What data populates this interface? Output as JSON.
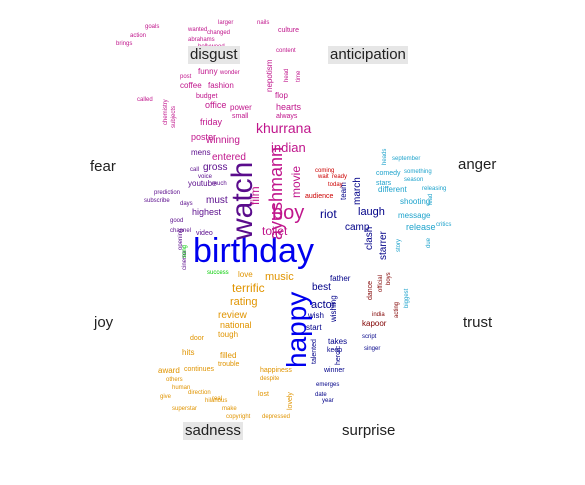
{
  "chart_data": {
    "type": "wordcloud",
    "title": "",
    "emotion_labels": [
      "disgust",
      "anticipation",
      "fear",
      "anger",
      "joy",
      "trust",
      "sadness",
      "surprise"
    ],
    "colors": {
      "disgust": "#c0168c",
      "fear": "#5a0c8c",
      "anger": "#1ea3cc",
      "joy": "#0000ee",
      "trust": "#800000",
      "sadness": "#e09400",
      "surprise": "#000088",
      "anticipation": "#cc0000",
      "green": "#00cc00"
    },
    "words": [
      {
        "text": "birthday",
        "emotion": "joy",
        "size": 34
      },
      {
        "text": "watch",
        "emotion": "fear",
        "size": 30
      },
      {
        "text": "happy",
        "emotion": "joy",
        "size": 28
      },
      {
        "text": "boy",
        "emotion": "disgust",
        "size": 20
      },
      {
        "text": "ayushmann",
        "emotion": "disgust",
        "size": 18
      },
      {
        "text": "khurrana",
        "emotion": "disgust",
        "size": 14
      },
      {
        "text": "indian",
        "emotion": "disgust",
        "size": 13
      },
      {
        "text": "movie",
        "emotion": "disgust",
        "size": 12
      },
      {
        "text": "toilet",
        "emotion": "disgust",
        "size": 12
      },
      {
        "text": "film",
        "emotion": "disgust",
        "size": 12
      },
      {
        "text": "entered",
        "emotion": "disgust",
        "size": 10
      },
      {
        "text": "winning",
        "emotion": "disgust",
        "size": 10
      },
      {
        "text": "poster",
        "emotion": "disgust",
        "size": 9
      },
      {
        "text": "hearts",
        "emotion": "disgust",
        "size": 9
      },
      {
        "text": "office",
        "emotion": "disgust",
        "size": 9
      },
      {
        "text": "friday",
        "emotion": "disgust",
        "size": 9
      },
      {
        "text": "coffee",
        "emotion": "disgust",
        "size": 8
      },
      {
        "text": "fashion",
        "emotion": "disgust",
        "size": 8
      },
      {
        "text": "nepotism",
        "emotion": "disgust",
        "size": 8
      },
      {
        "text": "flop",
        "emotion": "disgust",
        "size": 8
      },
      {
        "text": "power",
        "emotion": "disgust",
        "size": 8
      },
      {
        "text": "funny",
        "emotion": "disgust",
        "size": 8
      },
      {
        "text": "budget",
        "emotion": "disgust",
        "size": 7
      },
      {
        "text": "small",
        "emotion": "disgust",
        "size": 7
      },
      {
        "text": "always",
        "emotion": "disgust",
        "size": 7
      },
      {
        "text": "culture",
        "emotion": "disgust",
        "size": 7
      },
      {
        "text": "content",
        "emotion": "disgust",
        "size": 6
      },
      {
        "text": "larger",
        "emotion": "disgust",
        "size": 6
      },
      {
        "text": "nails",
        "emotion": "disgust",
        "size": 6
      },
      {
        "text": "bollywood",
        "emotion": "disgust",
        "size": 6
      },
      {
        "text": "changed",
        "emotion": "disgust",
        "size": 6
      },
      {
        "text": "wanted",
        "emotion": "disgust",
        "size": 6
      },
      {
        "text": "abrahams",
        "emotion": "disgust",
        "size": 6
      },
      {
        "text": "wonder",
        "emotion": "disgust",
        "size": 6
      },
      {
        "text": "head",
        "emotion": "disgust",
        "size": 6
      },
      {
        "text": "time",
        "emotion": "disgust",
        "size": 6
      },
      {
        "text": "post",
        "emotion": "disgust",
        "size": 6
      },
      {
        "text": "goals",
        "emotion": "disgust",
        "size": 6
      },
      {
        "text": "action",
        "emotion": "disgust",
        "size": 6
      },
      {
        "text": "brings",
        "emotion": "disgust",
        "size": 6
      },
      {
        "text": "called",
        "emotion": "disgust",
        "size": 6
      },
      {
        "text": "subjects",
        "emotion": "disgust",
        "size": 6
      },
      {
        "text": "chemistry",
        "emotion": "disgust",
        "size": 6
      },
      {
        "text": "mens",
        "emotion": "fear",
        "size": 8
      },
      {
        "text": "gross",
        "emotion": "fear",
        "size": 10
      },
      {
        "text": "must",
        "emotion": "fear",
        "size": 10
      },
      {
        "text": "highest",
        "emotion": "fear",
        "size": 9
      },
      {
        "text": "youtube",
        "emotion": "fear",
        "size": 8
      },
      {
        "text": "video",
        "emotion": "fear",
        "size": 7
      },
      {
        "text": "channel",
        "emotion": "fear",
        "size": 6
      },
      {
        "text": "prediction",
        "emotion": "fear",
        "size": 6
      },
      {
        "text": "subscribe",
        "emotion": "fear",
        "size": 6
      },
      {
        "text": "voice",
        "emotion": "fear",
        "size": 6
      },
      {
        "text": "call",
        "emotion": "fear",
        "size": 6
      },
      {
        "text": "much",
        "emotion": "fear",
        "size": 6
      },
      {
        "text": "good",
        "emotion": "fear",
        "size": 6
      },
      {
        "text": "opening",
        "emotion": "fear",
        "size": 6
      },
      {
        "text": "days",
        "emotion": "fear",
        "size": 6
      },
      {
        "text": "cinema",
        "emotion": "fear",
        "size": 6
      },
      {
        "text": "riot",
        "emotion": "surprise",
        "size": 12
      },
      {
        "text": "laugh",
        "emotion": "surprise",
        "size": 11
      },
      {
        "text": "camp",
        "emotion": "surprise",
        "size": 10
      },
      {
        "text": "march",
        "emotion": "surprise",
        "size": 10
      },
      {
        "text": "clash",
        "emotion": "surprise",
        "size": 10
      },
      {
        "text": "starrer",
        "emotion": "surprise",
        "size": 10
      },
      {
        "text": "team",
        "emotion": "surprise",
        "size": 8
      },
      {
        "text": "audience",
        "emotion": "anticipation",
        "size": 7
      },
      {
        "text": "coming",
        "emotion": "anticipation",
        "size": 6
      },
      {
        "text": "wait",
        "emotion": "anticipation",
        "size": 6
      },
      {
        "text": "ready",
        "emotion": "anticipation",
        "size": 6
      },
      {
        "text": "today",
        "emotion": "anticipation",
        "size": 6
      },
      {
        "text": "release",
        "emotion": "anger",
        "size": 9
      },
      {
        "text": "different",
        "emotion": "anger",
        "size": 8
      },
      {
        "text": "shooting",
        "emotion": "anger",
        "size": 8
      },
      {
        "text": "message",
        "emotion": "anger",
        "size": 8
      },
      {
        "text": "comedy",
        "emotion": "anger",
        "size": 7
      },
      {
        "text": "something",
        "emotion": "anger",
        "size": 6
      },
      {
        "text": "stars",
        "emotion": "anger",
        "size": 7
      },
      {
        "text": "season",
        "emotion": "anger",
        "size": 6
      },
      {
        "text": "releasing",
        "emotion": "anger",
        "size": 6
      },
      {
        "text": "september",
        "emotion": "anger",
        "size": 6
      },
      {
        "text": "critics",
        "emotion": "anger",
        "size": 6
      },
      {
        "text": "biggest",
        "emotion": "anger",
        "size": 6
      },
      {
        "text": "heads",
        "emotion": "anger",
        "size": 6
      },
      {
        "text": "lead",
        "emotion": "anger",
        "size": 6
      },
      {
        "text": "due",
        "emotion": "anger",
        "size": 6
      },
      {
        "text": "story",
        "emotion": "anger",
        "size": 6
      },
      {
        "text": "music",
        "emotion": "sadness",
        "size": 11
      },
      {
        "text": "terrific",
        "emotion": "sadness",
        "size": 12
      },
      {
        "text": "rating",
        "emotion": "sadness",
        "size": 11
      },
      {
        "text": "review",
        "emotion": "sadness",
        "size": 10
      },
      {
        "text": "national",
        "emotion": "sadness",
        "size": 9
      },
      {
        "text": "tough",
        "emotion": "sadness",
        "size": 8
      },
      {
        "text": "filled",
        "emotion": "sadness",
        "size": 8
      },
      {
        "text": "hits",
        "emotion": "sadness",
        "size": 8
      },
      {
        "text": "award",
        "emotion": "sadness",
        "size": 8
      },
      {
        "text": "continues",
        "emotion": "sadness",
        "size": 7
      },
      {
        "text": "trouble",
        "emotion": "sadness",
        "size": 7
      },
      {
        "text": "happiness",
        "emotion": "sadness",
        "size": 7
      },
      {
        "text": "others",
        "emotion": "sadness",
        "size": 6
      },
      {
        "text": "human",
        "emotion": "sadness",
        "size": 6
      },
      {
        "text": "give",
        "emotion": "sadness",
        "size": 6
      },
      {
        "text": "direction",
        "emotion": "sadness",
        "size": 6
      },
      {
        "text": "superstar",
        "emotion": "sadness",
        "size": 6
      },
      {
        "text": "hilarious",
        "emotion": "sadness",
        "size": 6
      },
      {
        "text": "make",
        "emotion": "sadness",
        "size": 6
      },
      {
        "text": "copyright",
        "emotion": "sadness",
        "size": 6
      },
      {
        "text": "depressed",
        "emotion": "sadness",
        "size": 6
      },
      {
        "text": "lovely",
        "emotion": "sadness",
        "size": 7
      },
      {
        "text": "lost",
        "emotion": "sadness",
        "size": 7
      },
      {
        "text": "despite",
        "emotion": "sadness",
        "size": 6
      },
      {
        "text": "real",
        "emotion": "sadness",
        "size": 6
      },
      {
        "text": "door",
        "emotion": "sadness",
        "size": 7
      },
      {
        "text": "love",
        "emotion": "sadness",
        "size": 8
      },
      {
        "text": "actor",
        "emotion": "surprise",
        "size": 11
      },
      {
        "text": "best",
        "emotion": "surprise",
        "size": 10
      },
      {
        "text": "father",
        "emotion": "surprise",
        "size": 8
      },
      {
        "text": "wish",
        "emotion": "surprise",
        "size": 8
      },
      {
        "text": "start",
        "emotion": "surprise",
        "size": 8
      },
      {
        "text": "takes",
        "emotion": "surprise",
        "size": 8
      },
      {
        "text": "wishing",
        "emotion": "surprise",
        "size": 8
      },
      {
        "text": "keep",
        "emotion": "surprise",
        "size": 7
      },
      {
        "text": "talented",
        "emotion": "surprise",
        "size": 7
      },
      {
        "text": "heroic",
        "emotion": "surprise",
        "size": 7
      },
      {
        "text": "winner",
        "emotion": "surprise",
        "size": 7
      },
      {
        "text": "emerges",
        "emotion": "surprise",
        "size": 6
      },
      {
        "text": "date",
        "emotion": "surprise",
        "size": 6
      },
      {
        "text": "year",
        "emotion": "surprise",
        "size": 6
      },
      {
        "text": "script",
        "emotion": "surprise",
        "size": 6
      },
      {
        "text": "singer",
        "emotion": "surprise",
        "size": 6
      },
      {
        "text": "kapoor",
        "emotion": "trust",
        "size": 8
      },
      {
        "text": "dance",
        "emotion": "trust",
        "size": 7
      },
      {
        "text": "india",
        "emotion": "trust",
        "size": 6
      },
      {
        "text": "acting",
        "emotion": "trust",
        "size": 6
      },
      {
        "text": "boys",
        "emotion": "trust",
        "size": 6
      },
      {
        "text": "official",
        "emotion": "trust",
        "size": 6
      },
      {
        "text": "success",
        "emotion": "green",
        "size": 6
      },
      {
        "text": "song",
        "emotion": "green",
        "size": 6
      }
    ]
  }
}
